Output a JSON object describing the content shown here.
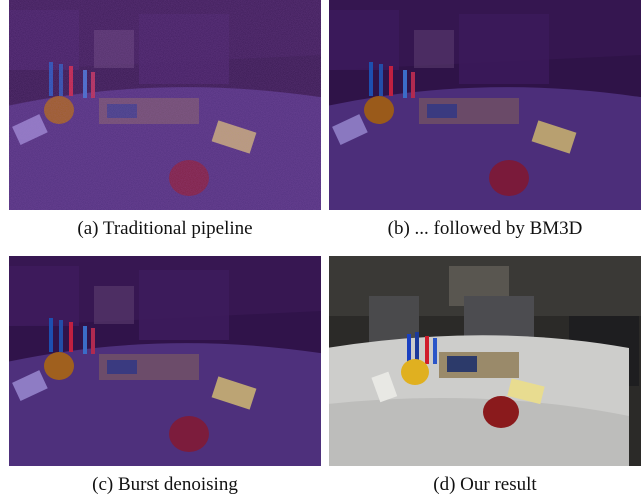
{
  "figure": {
    "panels": [
      {
        "id": "a",
        "caption": "(a) Traditional pipeline",
        "tone": "dark-purple-noisy"
      },
      {
        "id": "b",
        "caption": "(b) ... followed by BM3D",
        "tone": "dark-purple-smoothed"
      },
      {
        "id": "c",
        "caption": "(c) Burst denoising",
        "tone": "dark-purple-denoised"
      },
      {
        "id": "d",
        "caption": "(d) Our result",
        "tone": "natural-bright"
      }
    ],
    "colors": {
      "purple_bg": "#2e1147",
      "purple_table": "#5a3a8c",
      "result_wall": "#2b2a28",
      "result_table": "#cfcfcf"
    }
  }
}
